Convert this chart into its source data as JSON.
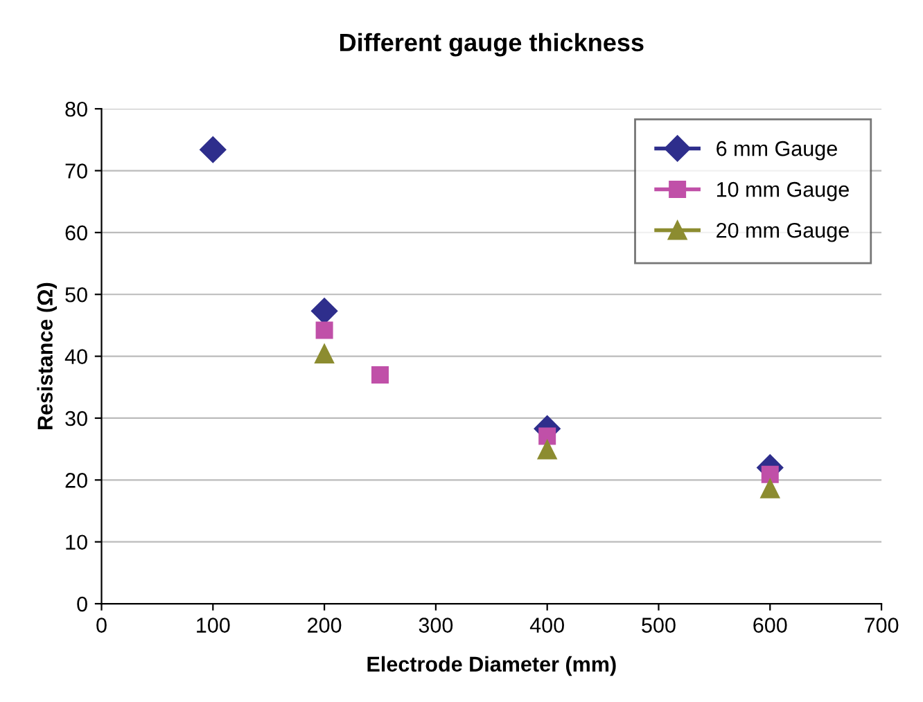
{
  "chart_data": {
    "type": "scatter",
    "title": "Different gauge thickness",
    "xlabel": "Electrode Diameter (mm)",
    "ylabel": "Resistance (Ω)",
    "xlim": [
      0,
      700
    ],
    "xticks": [
      0,
      100,
      200,
      300,
      400,
      500,
      600,
      700
    ],
    "ylim": [
      0,
      80
    ],
    "yticks": [
      0,
      10,
      20,
      30,
      40,
      50,
      60,
      70,
      80
    ],
    "grid": "y",
    "legend": "top right",
    "series": [
      {
        "name": "6 mm Gauge",
        "color": "#2e2e8c",
        "marker": "diamond",
        "x": [
          100,
          200,
          400,
          600
        ],
        "values": [
          73.4,
          47.3,
          28.3,
          22
        ]
      },
      {
        "name": "10 mm Gauge",
        "color": "#c050a8",
        "marker": "square",
        "x": [
          200,
          250,
          400,
          600
        ],
        "values": [
          44.2,
          37,
          27.1,
          20.9
        ]
      },
      {
        "name": "20 mm Gauge",
        "color": "#8c8c30",
        "marker": "triangle",
        "x": [
          200,
          400,
          600
        ],
        "values": [
          40.4,
          24.9,
          18.6
        ]
      }
    ]
  }
}
